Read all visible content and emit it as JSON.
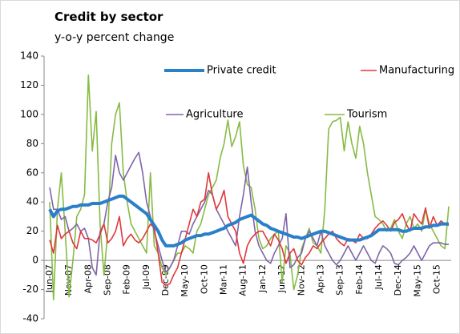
{
  "chart_data": {
    "type": "line",
    "title": "Credit by sector",
    "subtitle": "y-o-y percent change",
    "categories": [
      "Jun-07",
      null,
      null,
      null,
      null,
      "Nov-07",
      null,
      null,
      null,
      null,
      "Apr-08",
      null,
      null,
      null,
      null,
      "Sep-08",
      null,
      null,
      null,
      null,
      "Feb-09",
      null,
      null,
      null,
      null,
      "Jul-09",
      null,
      null,
      null,
      null,
      "Dec-09",
      null,
      null,
      null,
      null,
      "May-10",
      null,
      null,
      null,
      null,
      "Oct-10",
      null,
      null,
      null,
      null,
      "Mar-11",
      null,
      null,
      null,
      null,
      "Aug-11",
      null,
      null,
      null,
      null,
      "Jan-12",
      null,
      null,
      null,
      null,
      "Jun-12",
      null,
      null,
      null,
      null,
      "Nov-12",
      null,
      null,
      null,
      null,
      "Apr-13",
      null,
      null,
      null,
      null,
      "Sep-13",
      null,
      null,
      null,
      null,
      "Feb-14",
      null,
      null,
      null,
      null,
      "Jul-14",
      null,
      null,
      null,
      null,
      "Dec-14",
      null,
      null,
      null,
      null,
      "May-15",
      null,
      null,
      null,
      null,
      "Oct-15",
      null,
      null,
      null
    ],
    "series": [
      {
        "name": "Private credit",
        "color": "#2a7fc9",
        "values": [
          35,
          30,
          34,
          35,
          35,
          36,
          37,
          37,
          38,
          38,
          38,
          39,
          39,
          39,
          40,
          41,
          42,
          43,
          44,
          44,
          42,
          40,
          38,
          36,
          34,
          32,
          28,
          24,
          20,
          14,
          10,
          10,
          10,
          11,
          12,
          14,
          15,
          16,
          17,
          17,
          18,
          18,
          19,
          20,
          21,
          22,
          24,
          25,
          26,
          28,
          29,
          30,
          31,
          29,
          27,
          25,
          24,
          22,
          21,
          20,
          19,
          18,
          17,
          16,
          16,
          15,
          16,
          17,
          18,
          19,
          20,
          20,
          19,
          18,
          17,
          16,
          15,
          14,
          14,
          14,
          14,
          15,
          16,
          17,
          19,
          21,
          21,
          21,
          21,
          21,
          21,
          20,
          20,
          21,
          22,
          22,
          22,
          23,
          23,
          24,
          24,
          25,
          25,
          25
        ]
      },
      {
        "name": "Manufacturing",
        "color": "#e0383a",
        "values": [
          14,
          5,
          24,
          15,
          18,
          20,
          12,
          8,
          20,
          15,
          15,
          14,
          12,
          18,
          25,
          12,
          15,
          20,
          30,
          10,
          15,
          18,
          14,
          12,
          15,
          20,
          25,
          22,
          5,
          -15,
          -17,
          -16,
          -10,
          -5,
          5,
          15,
          25,
          35,
          30,
          40,
          42,
          60,
          45,
          35,
          40,
          48,
          30,
          25,
          20,
          5,
          -2,
          10,
          15,
          18,
          20,
          20,
          15,
          10,
          18,
          14,
          8,
          -2,
          5,
          8,
          0,
          -3,
          2,
          5,
          10,
          8,
          12,
          15,
          18,
          20,
          15,
          12,
          10,
          15,
          14,
          12,
          18,
          15,
          15,
          18,
          22,
          25,
          27,
          24,
          20,
          26,
          28,
          32,
          25,
          20,
          32,
          28,
          25,
          36,
          22,
          30,
          24,
          27,
          25,
          24
        ]
      },
      {
        "name": "Agriculture",
        "color": "#8064a8",
        "values": [
          50,
          35,
          35,
          28,
          30,
          20,
          22,
          25,
          20,
          22,
          15,
          -5,
          -10,
          20,
          25,
          40,
          50,
          72,
          60,
          55,
          60,
          65,
          70,
          74,
          60,
          40,
          30,
          20,
          10,
          0,
          -8,
          -5,
          0,
          10,
          20,
          20,
          18,
          25,
          30,
          35,
          40,
          48,
          45,
          35,
          30,
          25,
          20,
          15,
          10,
          30,
          45,
          64,
          40,
          20,
          10,
          5,
          0,
          -2,
          5,
          10,
          15,
          32,
          -5,
          -3,
          2,
          5,
          15,
          20,
          15,
          10,
          20,
          10,
          5,
          0,
          -3,
          0,
          5,
          10,
          5,
          0,
          5,
          10,
          5,
          0,
          -2,
          5,
          10,
          8,
          5,
          -2,
          -3,
          0,
          2,
          5,
          10,
          5,
          0,
          5,
          10,
          12,
          12,
          12,
          11,
          11
        ]
      },
      {
        "name": "Tourism",
        "color": "#86bb44",
        "values": [
          40,
          -27,
          35,
          60,
          20,
          -25,
          0,
          30,
          35,
          45,
          127,
          75,
          102,
          25,
          -10,
          20,
          80,
          100,
          108,
          60,
          40,
          25,
          20,
          15,
          10,
          5,
          60,
          10,
          5,
          -5,
          -10,
          -5,
          0,
          5,
          5,
          10,
          8,
          5,
          20,
          25,
          35,
          45,
          50,
          55,
          70,
          80,
          96,
          78,
          85,
          95,
          65,
          52,
          50,
          35,
          15,
          8,
          10,
          15,
          18,
          20,
          -15,
          10,
          5,
          -20,
          -10,
          8,
          15,
          22,
          12,
          10,
          5,
          35,
          90,
          95,
          96,
          98,
          75,
          95,
          80,
          70,
          92,
          80,
          60,
          45,
          30,
          28,
          25,
          20,
          22,
          28,
          20,
          15,
          25,
          30,
          22,
          25,
          20,
          35,
          25,
          20,
          15,
          10,
          8,
          37
        ]
      }
    ],
    "ylim": [
      -40,
      140
    ],
    "yticks": [
      -40,
      -20,
      0,
      20,
      40,
      60,
      80,
      100,
      120,
      140
    ],
    "grid": false
  }
}
